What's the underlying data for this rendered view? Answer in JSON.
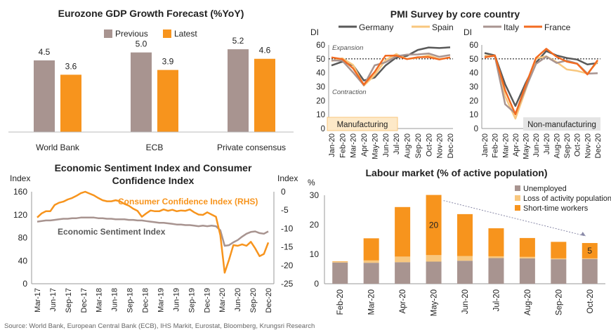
{
  "source": "Source: World Bank, European Central Bank (ECB), IHS Markit, Eurostat, Bloomberg, Krungsri Research",
  "colors": {
    "previous": "#a89490",
    "latest": "#f7941d",
    "germany": "#595959",
    "spain": "#f8c77e",
    "italy": "#a89490",
    "france": "#f26b21",
    "esi": "#a89490",
    "cci": "#f7941d",
    "unemployed": "#a89490",
    "loss": "#f8c77e",
    "stw": "#f7941d"
  },
  "chart_data": [
    {
      "type": "bar",
      "title": "Eurozone GDP Growth Forecast (%YoY)",
      "categories": [
        "World Bank",
        "ECB",
        "Private consensus"
      ],
      "series": [
        {
          "name": "Previous",
          "values": [
            4.5,
            5.0,
            5.2
          ]
        },
        {
          "name": "Latest",
          "values": [
            3.6,
            3.9,
            4.6
          ]
        }
      ],
      "data_labels": [
        [
          "4.5",
          "5.0",
          "5.2"
        ],
        [
          "3.6",
          "3.9",
          "4.6"
        ]
      ],
      "ylim": [
        0,
        6.4
      ],
      "legend": "top"
    },
    {
      "type": "line",
      "title": "PMI Survey by core country",
      "ylabel": "DI",
      "x": [
        "Jan-20",
        "Feb-20",
        "Mar-20",
        "Apr-20",
        "May-20",
        "Jun-20",
        "Jul-20",
        "Aug-20",
        "Sep-20",
        "Oct-20",
        "Nov-20",
        "Dec-20"
      ],
      "yticks": [
        0,
        10,
        20,
        30,
        40,
        50,
        60
      ],
      "ylim": [
        0,
        60
      ],
      "threshold": 50,
      "legend": "top",
      "panels": [
        {
          "label": "Manufacturing",
          "annotations": [
            "Expansion",
            "Contraction"
          ],
          "series": [
            {
              "name": "Germany",
              "values": [
                45.3,
                48.0,
                45.4,
                34.5,
                36.6,
                45.2,
                51.0,
                52.2,
                56.4,
                58.2,
                57.8,
                58.3
              ]
            },
            {
              "name": "Spain",
              "values": [
                48.5,
                50.4,
                45.7,
                30.8,
                38.3,
                49.0,
                53.5,
                49.9,
                50.8,
                52.5,
                49.8,
                51.0
              ]
            },
            {
              "name": "Italy",
              "values": [
                48.9,
                48.7,
                40.3,
                31.1,
                45.4,
                47.5,
                51.9,
                53.1,
                53.2,
                53.9,
                51.5,
                52.8
              ]
            },
            {
              "name": "France",
              "values": [
                51.1,
                49.8,
                43.2,
                31.5,
                40.6,
                52.3,
                52.4,
                49.8,
                51.2,
                51.3,
                49.6,
                51.1
              ]
            }
          ]
        },
        {
          "label": "Non-manufacturing",
          "series": [
            {
              "name": "Germany",
              "values": [
                54.2,
                52.5,
                31.7,
                16.2,
                32.6,
                47.3,
                55.6,
                52.5,
                50.6,
                49.5,
                46.0,
                47.0
              ]
            },
            {
              "name": "Spain",
              "values": [
                52.3,
                52.1,
                23.0,
                7.1,
                27.9,
                50.2,
                51.9,
                47.7,
                42.4,
                41.4,
                39.5,
                48.0
              ]
            },
            {
              "name": "Italy",
              "values": [
                51.4,
                52.1,
                17.4,
                10.8,
                28.9,
                46.4,
                51.6,
                47.1,
                48.8,
                46.7,
                39.4,
                39.7
              ]
            },
            {
              "name": "France",
              "values": [
                51.0,
                52.5,
                27.4,
                10.2,
                31.1,
                50.7,
                57.3,
                51.5,
                48.0,
                46.5,
                38.8,
                49.1
              ]
            }
          ]
        }
      ]
    },
    {
      "type": "line",
      "title": "Economic Sentiment Index and Consumer Confidence Index",
      "ylabel_left": "Index",
      "ylabel_right": "Index",
      "x_ticks": [
        "Mar-17",
        "Jun-17",
        "Sep-17",
        "Dec-17",
        "Mar-18",
        "Jun-18",
        "Sep-18",
        "Dec-18",
        "Mar-19",
        "Jun-19",
        "Sep-19",
        "Dec-19",
        "Mar-20",
        "Jun-20",
        "Sep-20",
        "Dec-20"
      ],
      "ylim_left": [
        0,
        160
      ],
      "yticks_left": [
        0,
        40,
        80,
        120,
        160
      ],
      "ylim_right": [
        -25,
        0
      ],
      "yticks_right": [
        -25,
        -20,
        -15,
        -10,
        -5,
        0
      ],
      "series": [
        {
          "name": "Economic Sentiment Index",
          "axis": "left",
          "label_text": "Economic Sentiment Index",
          "values": [
            108,
            109,
            110,
            110,
            111,
            112,
            113,
            113,
            114,
            114,
            115,
            115,
            115,
            115,
            114,
            114,
            113,
            113,
            112,
            112,
            112,
            111,
            111,
            110,
            110,
            109,
            108,
            107,
            106,
            106,
            105,
            104,
            103,
            103,
            102,
            102,
            101,
            100,
            101,
            100,
            101,
            100,
            93,
            66,
            67,
            72,
            76,
            82,
            87,
            90,
            91,
            88,
            87,
            91
          ]
        },
        {
          "name": "Consumer Confidence Index (RHS)",
          "axis": "right",
          "label_text": "Consumer Confidence Index (RHS)",
          "values": [
            -7.0,
            -5.9,
            -5.3,
            -5.3,
            -3.6,
            -3.0,
            -2.7,
            -2.1,
            -1.7,
            -1.1,
            -0.4,
            0.0,
            -0.5,
            -1.0,
            -1.7,
            -2.3,
            -2.6,
            -2.6,
            -2.3,
            -2.6,
            -3.3,
            -3.8,
            -4.6,
            -5.2,
            -6.8,
            -5.9,
            -5.1,
            -5.3,
            -5.3,
            -4.8,
            -5.2,
            -4.9,
            -5.3,
            -5.1,
            -5.2,
            -4.8,
            -5.6,
            -6.2,
            -6.3,
            -5.6,
            -6.2,
            -6.8,
            -11.8,
            -22.0,
            -18.5,
            -14.5,
            -14.7,
            -14.3,
            -14.7,
            -13.6,
            -15.4,
            -17.5,
            -16.9,
            -13.8
          ]
        }
      ]
    },
    {
      "type": "bar",
      "stacked": true,
      "title": "Labour market (% of active population)",
      "ylabel": "%",
      "categories": [
        "Feb-20",
        "Mar-20",
        "Apr-20",
        "May-20",
        "Jun-20",
        "Jul-20",
        "Aug-20",
        "Sep-20",
        "Oct-20"
      ],
      "ylim": [
        0,
        30
      ],
      "yticks": [
        0,
        10,
        20,
        30
      ],
      "series": [
        {
          "name": "Unemployed",
          "values": [
            7.2,
            7.1,
            7.3,
            7.5,
            7.8,
            8.7,
            8.6,
            8.3,
            8.4
          ]
        },
        {
          "name": "Loss of activity population",
          "values": [
            0.3,
            0.8,
            1.9,
            2.2,
            1.6,
            0.6,
            0.5,
            0.3,
            0.2
          ]
        },
        {
          "name": "Short-time workers",
          "values": [
            0.1,
            7.5,
            16.8,
            20.4,
            14.2,
            9.5,
            6.4,
            5.6,
            5.2
          ]
        }
      ],
      "data_labels": [
        {
          "category": "May-20",
          "text": "20"
        },
        {
          "category": "Oct-20",
          "text": "5"
        }
      ],
      "legend": "top-right"
    }
  ]
}
